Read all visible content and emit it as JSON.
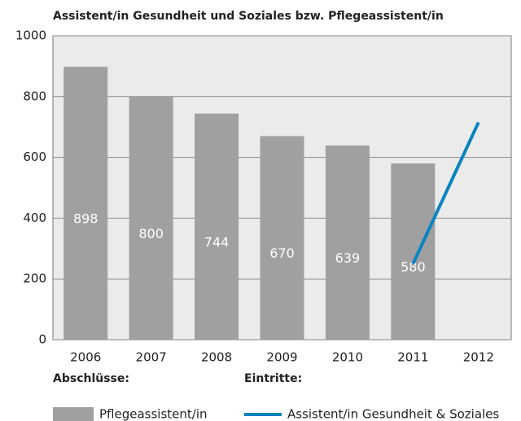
{
  "chart_data": {
    "type": "bar",
    "title": "Assistent/in Gesundheit und Soziales bzw. Pflegeassistent/in",
    "categories": [
      "2006",
      "2007",
      "2008",
      "2009",
      "2010",
      "2011",
      "2012"
    ],
    "series": [
      {
        "name": "Pflegeassistent/in",
        "type": "bar",
        "color": "#a0a0a0",
        "legend_group": "Abschlüsse:",
        "values": [
          898,
          800,
          744,
          670,
          639,
          580,
          null
        ]
      },
      {
        "name": "Assistent/in Gesundheit & Soziales",
        "type": "line",
        "color": "#0a84bf",
        "legend_group": "Eintritte:",
        "values": [
          null,
          null,
          null,
          null,
          null,
          250,
          715
        ]
      }
    ],
    "ylim": [
      0,
      1000
    ],
    "yticks": [
      0,
      200,
      400,
      600,
      800,
      1000
    ],
    "grid": true
  }
}
